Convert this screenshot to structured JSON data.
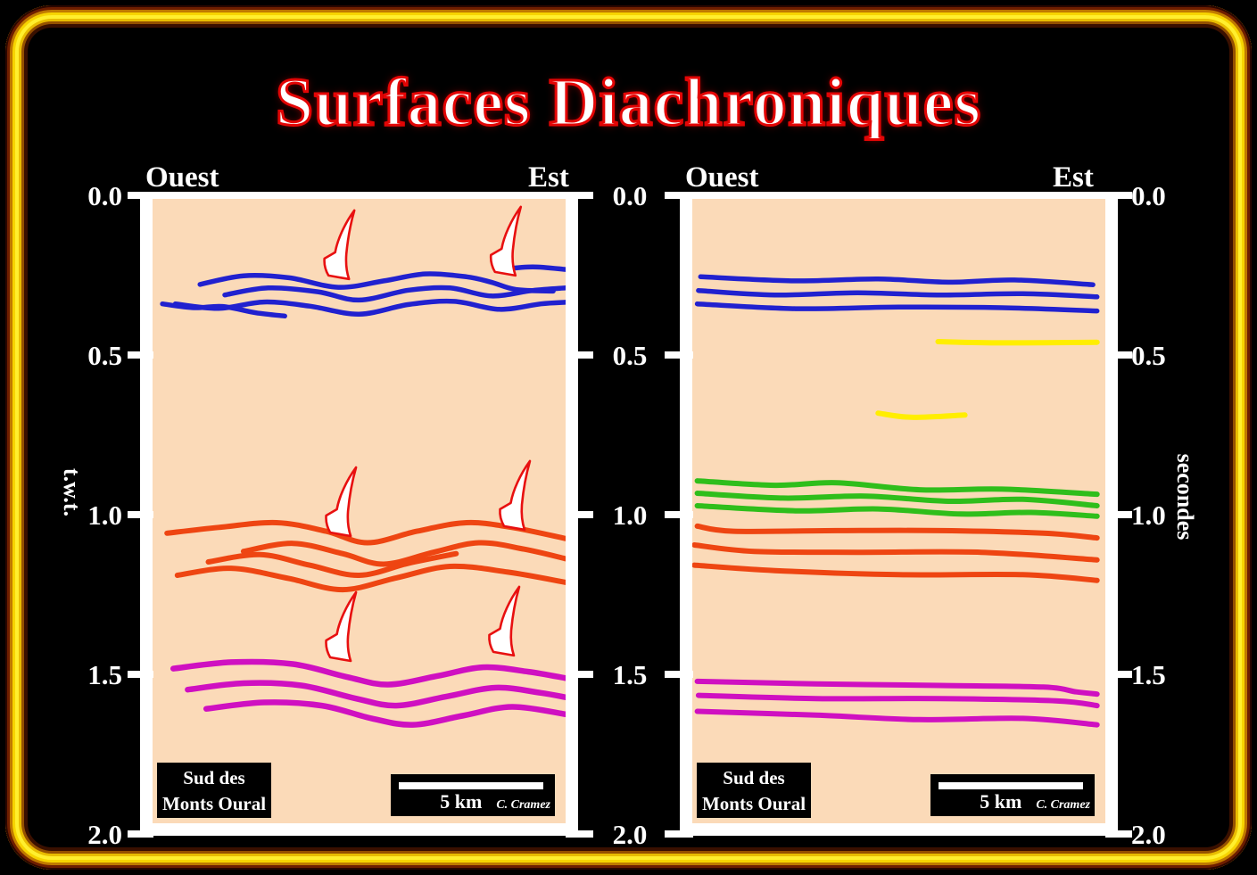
{
  "title": "Surfaces Diachroniques",
  "axis": {
    "ticks": [
      "0.0",
      "0.5",
      "1.0",
      "1.5",
      "2.0"
    ],
    "left_unit": "t.w.t.",
    "right_unit": "secondes"
  },
  "panels": [
    {
      "west_label": "Ouest",
      "east_label": "Est",
      "location_line1": "Sud des",
      "location_line2": "Monts Oural",
      "scale_text": "5 km",
      "credit": "C. Cramez"
    },
    {
      "west_label": "Ouest",
      "east_label": "Est",
      "location_line1": "Sud des",
      "location_line2": "Monts Oural",
      "scale_text": "5 km",
      "credit": "C. Cramez"
    }
  ],
  "colors": {
    "background": "#000000",
    "gold_border": "#ffe70a",
    "panel_bg": "#fbdab8",
    "frame_white": "#ffffff",
    "title_fill": "#ffffff",
    "title_outline": "#e30505",
    "arrow_fill": "#ffffff",
    "arrow_outline": "#e81010",
    "horizons": {
      "blue": "#2121cf",
      "orange": "#ee4512",
      "magenta": "#cf10c1",
      "green": "#2fbe1b",
      "yellow": "#ffee00"
    }
  },
  "chart_data": {
    "type": "line",
    "description": "Two seismic time sections (west-east). Left: folded diachronic reflectors with red arrows marking surfaces; right: same section with flattened reflectors plus yellow and green horizons.",
    "time_axis": {
      "ticks": [
        0,
        0.5,
        1,
        1.5,
        2
      ],
      "unit": "seconds two-way time"
    },
    "panels": [
      {
        "name": "interpreted-folded-section",
        "horizons": [
          {
            "color": "blue",
            "width": 5.5,
            "points": [
              [
                0.115,
                0.279
              ],
              [
                0.22,
                0.252
              ],
              [
                0.33,
                0.258
              ],
              [
                0.45,
                0.288
              ],
              [
                0.56,
                0.268
              ],
              [
                0.66,
                0.246
              ],
              [
                0.76,
                0.255
              ],
              [
                0.82,
                0.272
              ],
              [
                0.88,
                0.295
              ],
              [
                0.97,
                0.3
              ]
            ]
          },
          {
            "color": "blue",
            "width": 5.5,
            "points": [
              [
                0.84,
                0.232
              ],
              [
                0.92,
                0.224
              ],
              [
                1.0,
                0.232
              ]
            ]
          },
          {
            "color": "blue",
            "width": 5.5,
            "points": [
              [
                0.175,
                0.312
              ],
              [
                0.28,
                0.29
              ],
              [
                0.4,
                0.302
              ],
              [
                0.5,
                0.328
              ],
              [
                0.62,
                0.297
              ],
              [
                0.72,
                0.29
              ],
              [
                0.82,
                0.315
              ],
              [
                0.92,
                0.298
              ],
              [
                1.0,
                0.29
              ]
            ]
          },
          {
            "color": "blue",
            "width": 5.5,
            "points": [
              [
                0.055,
                0.34
              ],
              [
                0.16,
                0.354
              ],
              [
                0.27,
                0.334
              ],
              [
                0.38,
                0.347
              ],
              [
                0.5,
                0.372
              ],
              [
                0.62,
                0.342
              ],
              [
                0.73,
                0.332
              ],
              [
                0.84,
                0.357
              ],
              [
                0.94,
                0.34
              ],
              [
                1.0,
                0.335
              ]
            ]
          },
          {
            "color": "blue",
            "width": 5.5,
            "points": [
              [
                0.024,
                0.34
              ],
              [
                0.1,
                0.352
              ],
              [
                0.17,
                0.348
              ],
              [
                0.25,
                0.368
              ],
              [
                0.32,
                0.378
              ]
            ]
          },
          {
            "color": "orange",
            "width": 6,
            "points": [
              [
                0.035,
                1.058
              ],
              [
                0.16,
                1.04
              ],
              [
                0.3,
                1.025
              ],
              [
                0.42,
                1.052
              ],
              [
                0.52,
                1.088
              ],
              [
                0.64,
                1.052
              ],
              [
                0.76,
                1.025
              ],
              [
                0.87,
                1.04
              ],
              [
                1.0,
                1.075
              ]
            ]
          },
          {
            "color": "orange",
            "width": 6,
            "points": [
              [
                0.22,
                1.115
              ],
              [
                0.34,
                1.09
              ],
              [
                0.46,
                1.122
              ],
              [
                0.56,
                1.155
              ],
              [
                0.68,
                1.118
              ],
              [
                0.79,
                1.088
              ],
              [
                0.9,
                1.108
              ],
              [
                1.0,
                1.138
              ]
            ]
          },
          {
            "color": "orange",
            "width": 6,
            "points": [
              [
                0.135,
                1.148
              ],
              [
                0.26,
                1.125
              ],
              [
                0.38,
                1.158
              ],
              [
                0.5,
                1.19
              ],
              [
                0.62,
                1.152
              ],
              [
                0.735,
                1.122
              ]
            ]
          },
          {
            "color": "orange",
            "width": 6,
            "points": [
              [
                0.06,
                1.19
              ],
              [
                0.19,
                1.168
              ],
              [
                0.33,
                1.2
              ],
              [
                0.46,
                1.235
              ],
              [
                0.59,
                1.198
              ],
              [
                0.72,
                1.162
              ],
              [
                0.86,
                1.18
              ],
              [
                1.0,
                1.212
              ]
            ]
          },
          {
            "color": "magenta",
            "width": 6.5,
            "points": [
              [
                0.05,
                1.482
              ],
              [
                0.19,
                1.462
              ],
              [
                0.34,
                1.468
              ],
              [
                0.47,
                1.508
              ],
              [
                0.57,
                1.532
              ],
              [
                0.69,
                1.505
              ],
              [
                0.8,
                1.478
              ],
              [
                0.91,
                1.492
              ],
              [
                1.0,
                1.512
              ]
            ]
          },
          {
            "color": "magenta",
            "width": 6.5,
            "points": [
              [
                0.085,
                1.548
              ],
              [
                0.22,
                1.528
              ],
              [
                0.36,
                1.535
              ],
              [
                0.49,
                1.575
              ],
              [
                0.59,
                1.598
              ],
              [
                0.71,
                1.57
              ],
              [
                0.83,
                1.542
              ],
              [
                0.94,
                1.558
              ],
              [
                1.0,
                1.572
              ]
            ]
          },
          {
            "color": "magenta",
            "width": 6.5,
            "points": [
              [
                0.13,
                1.608
              ],
              [
                0.27,
                1.588
              ],
              [
                0.41,
                1.598
              ],
              [
                0.53,
                1.638
              ],
              [
                0.63,
                1.658
              ],
              [
                0.75,
                1.63
              ],
              [
                0.87,
                1.602
              ],
              [
                1.0,
                1.625
              ]
            ]
          }
        ],
        "arrows": [
          {
            "fx": 0.426,
            "t": 0.251
          },
          {
            "fx": 0.829,
            "t": 0.24
          },
          {
            "fx": 0.43,
            "t": 1.056
          },
          {
            "fx": 0.851,
            "t": 1.036
          },
          {
            "fx": 0.43,
            "t": 1.447
          },
          {
            "fx": 0.825,
            "t": 1.43
          }
        ]
      },
      {
        "name": "flattened-section",
        "horizons": [
          {
            "color": "blue",
            "width": 5.5,
            "points": [
              [
                0.02,
                0.255
              ],
              [
                0.25,
                0.268
              ],
              [
                0.45,
                0.262
              ],
              [
                0.62,
                0.272
              ],
              [
                0.78,
                0.265
              ],
              [
                0.97,
                0.28
              ]
            ]
          },
          {
            "color": "blue",
            "width": 5.5,
            "points": [
              [
                0.015,
                0.298
              ],
              [
                0.2,
                0.312
              ],
              [
                0.4,
                0.305
              ],
              [
                0.6,
                0.312
              ],
              [
                0.8,
                0.308
              ],
              [
                0.98,
                0.318
              ]
            ]
          },
          {
            "color": "blue",
            "width": 5.5,
            "points": [
              [
                0.012,
                0.34
              ],
              [
                0.25,
                0.355
              ],
              [
                0.5,
                0.35
              ],
              [
                0.75,
                0.352
              ],
              [
                0.98,
                0.362
              ]
            ]
          },
          {
            "color": "yellow",
            "width": 6,
            "points": [
              [
                0.595,
                0.458
              ],
              [
                0.75,
                0.462
              ],
              [
                0.98,
                0.46
              ]
            ]
          },
          {
            "color": "yellow",
            "width": 6,
            "points": [
              [
                0.45,
                0.682
              ],
              [
                0.53,
                0.695
              ],
              [
                0.66,
                0.688
              ]
            ]
          },
          {
            "color": "green",
            "width": 6,
            "points": [
              [
                0.012,
                0.894
              ],
              [
                0.2,
                0.908
              ],
              [
                0.35,
                0.9
              ],
              [
                0.55,
                0.922
              ],
              [
                0.75,
                0.92
              ],
              [
                0.98,
                0.936
              ]
            ]
          },
          {
            "color": "green",
            "width": 6,
            "points": [
              [
                0.012,
                0.933
              ],
              [
                0.22,
                0.948
              ],
              [
                0.42,
                0.942
              ],
              [
                0.62,
                0.958
              ],
              [
                0.8,
                0.952
              ],
              [
                0.98,
                0.972
              ]
            ]
          },
          {
            "color": "green",
            "width": 6,
            "points": [
              [
                0.012,
                0.972
              ],
              [
                0.25,
                0.988
              ],
              [
                0.45,
                0.982
              ],
              [
                0.65,
                0.998
              ],
              [
                0.82,
                0.993
              ],
              [
                0.98,
                1.005
              ]
            ]
          },
          {
            "color": "orange",
            "width": 6,
            "points": [
              [
                0.012,
                1.036
              ],
              [
                0.1,
                1.052
              ],
              [
                0.35,
                1.05
              ],
              [
                0.6,
                1.05
              ],
              [
                0.85,
                1.058
              ],
              [
                0.98,
                1.073
              ]
            ]
          },
          {
            "color": "orange",
            "width": 6,
            "points": [
              [
                0.005,
                1.095
              ],
              [
                0.15,
                1.115
              ],
              [
                0.4,
                1.118
              ],
              [
                0.7,
                1.118
              ],
              [
                0.98,
                1.142
              ]
            ]
          },
          {
            "color": "orange",
            "width": 6,
            "points": [
              [
                0.005,
                1.158
              ],
              [
                0.2,
                1.175
              ],
              [
                0.5,
                1.188
              ],
              [
                0.8,
                1.188
              ],
              [
                0.98,
                1.206
              ]
            ]
          },
          {
            "color": "magenta",
            "width": 6,
            "points": [
              [
                0.012,
                1.522
              ],
              [
                0.3,
                1.53
              ],
              [
                0.6,
                1.535
              ],
              [
                0.85,
                1.54
              ],
              [
                0.93,
                1.555
              ],
              [
                0.98,
                1.562
              ]
            ]
          },
          {
            "color": "magenta",
            "width": 6,
            "points": [
              [
                0.015,
                1.566
              ],
              [
                0.3,
                1.576
              ],
              [
                0.6,
                1.576
              ],
              [
                0.88,
                1.583
              ],
              [
                0.98,
                1.598
              ]
            ]
          },
          {
            "color": "magenta",
            "width": 6,
            "points": [
              [
                0.012,
                1.616
              ],
              [
                0.3,
                1.628
              ],
              [
                0.55,
                1.642
              ],
              [
                0.8,
                1.638
              ],
              [
                0.98,
                1.658
              ]
            ]
          }
        ],
        "arrows": []
      }
    ]
  }
}
